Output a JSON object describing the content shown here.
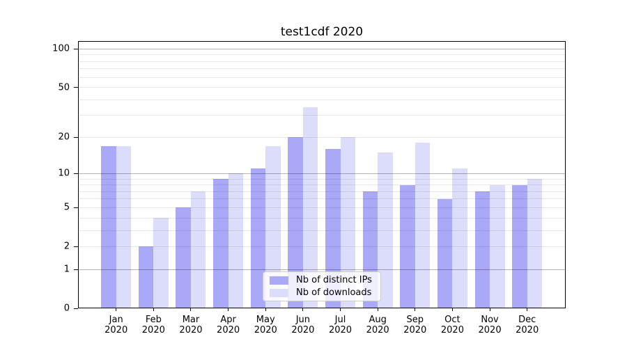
{
  "title": "test1cdf 2020",
  "colors": {
    "ips_bar": "#a9a9f8",
    "downloads_bar": "#dcdcfb",
    "grid_major": "rgba(0,0,0,0.30)",
    "grid_minor": "rgba(0,0,0,0.085)",
    "axis_line": "#000000",
    "text": "#000000",
    "legend_border": "#cccccc",
    "legend_background": "rgba(255,255,255,0.8)"
  },
  "chart_data": {
    "type": "bar",
    "title": "test1cdf 2020",
    "categories": [
      "Jan",
      "Feb",
      "Mar",
      "Apr",
      "May",
      "Jun",
      "Jul",
      "Aug",
      "Sep",
      "Oct",
      "Nov",
      "Dec"
    ],
    "x_year": "2020",
    "series": [
      {
        "name": "Nb of distinct IPs",
        "color": "#a9a9f8",
        "values": [
          17,
          2,
          5,
          9,
          11,
          20,
          16,
          7,
          8,
          6,
          7,
          8
        ]
      },
      {
        "name": "Nb of downloads",
        "color": "#dcdcfb",
        "values": [
          17,
          4,
          7,
          10,
          17,
          35,
          20,
          15,
          18,
          11,
          8,
          9
        ]
      }
    ],
    "xlabel": "",
    "ylabel": "",
    "y_scale": "log10(1+value)",
    "ylim": [
      0,
      112
    ],
    "y_ticks": [
      0,
      1,
      2,
      5,
      10,
      20,
      50,
      100
    ],
    "y_major_gridlines": [
      1,
      10,
      100
    ],
    "y_minor_gridlines": [
      2,
      3,
      4,
      5,
      6,
      7,
      8,
      9,
      20,
      30,
      40,
      50,
      60,
      70,
      80,
      90
    ],
    "grid": "on",
    "legend_position": "inside-bottom-center"
  }
}
